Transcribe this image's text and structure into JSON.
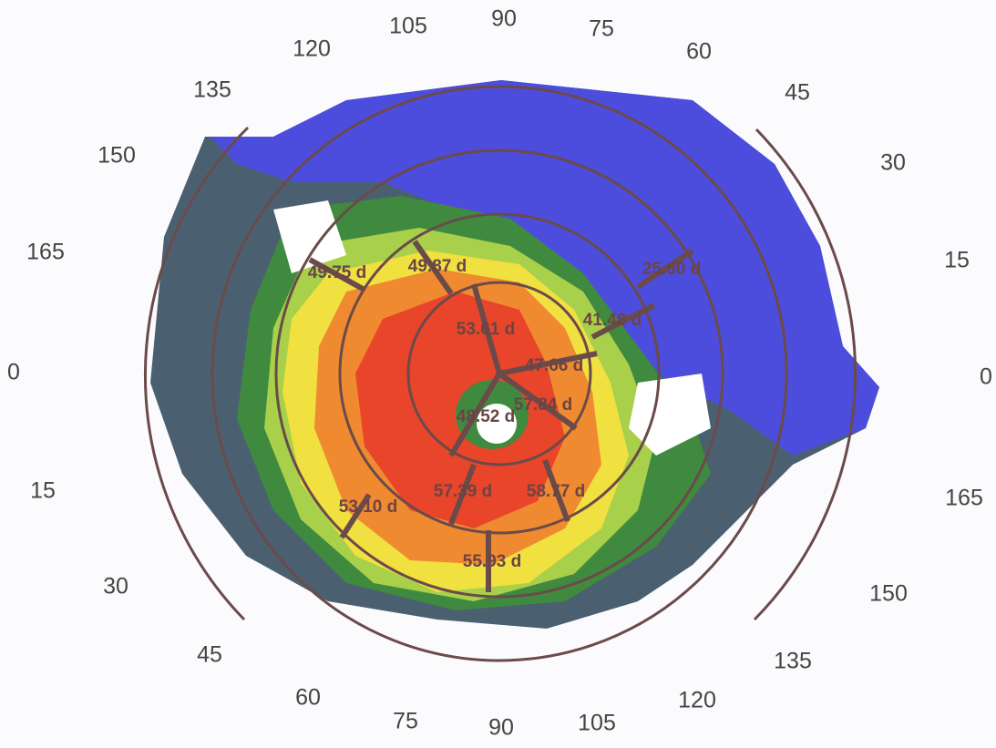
{
  "angle_labels": {
    "upper": [
      "165",
      "150",
      "135",
      "120",
      "105",
      "90",
      "75",
      "60",
      "45",
      "30",
      "15",
      "0"
    ],
    "lower": [
      "0",
      "15",
      "30",
      "45",
      "60",
      "75",
      "90",
      "105",
      "120",
      "135",
      "150",
      "165"
    ]
  },
  "readings": [
    "49.75 d",
    "49.87 d",
    "25.60 d",
    "53.61 d",
    "41.48 d",
    "47.66 d",
    "57.84 d",
    "48.52 d",
    "53.10 d",
    "57.39 d",
    "58.77 d",
    "55.93 d"
  ]
}
